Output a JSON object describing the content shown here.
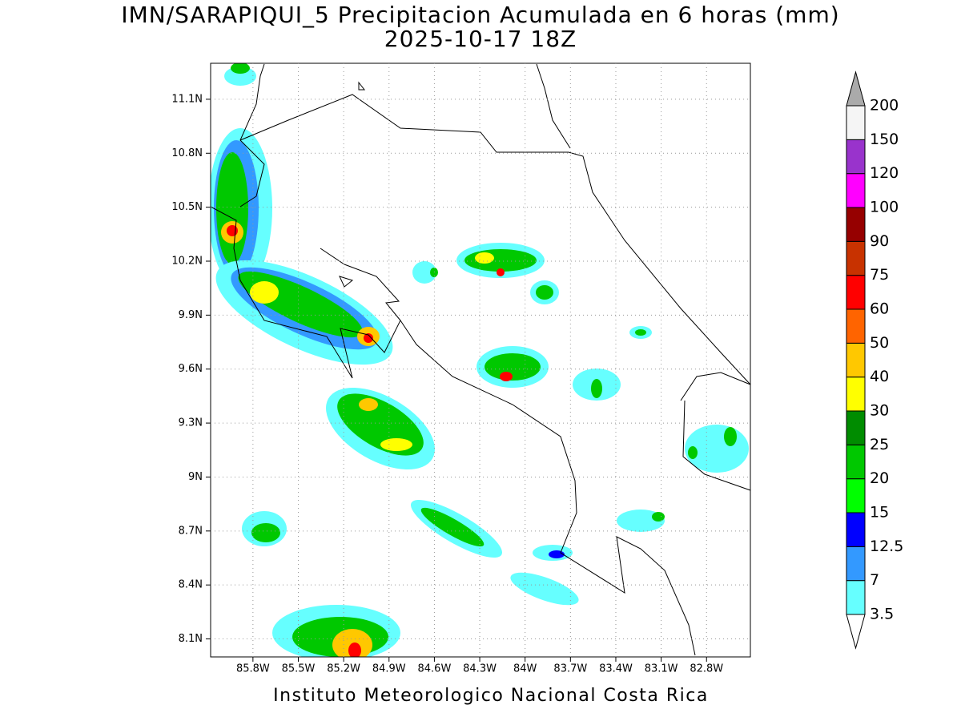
{
  "chart_data": {
    "type": "contour_map",
    "title": "IMN/SARAPIQUI_5 Precipitacion Acumulada en 6 horas (mm)",
    "subtitle": "2025-10-17 18Z",
    "footer": "Instituto Meteorologico Nacional Costa Rica",
    "xlim": [
      -86.08,
      -82.51
    ],
    "ylim": [
      8.0,
      11.3
    ],
    "xticks": [
      {
        "value": -85.8,
        "label": "85.8W"
      },
      {
        "value": -85.5,
        "label": "85.5W"
      },
      {
        "value": -85.2,
        "label": "85.2W"
      },
      {
        "value": -84.9,
        "label": "84.9W"
      },
      {
        "value": -84.6,
        "label": "84.6W"
      },
      {
        "value": -84.3,
        "label": "84.3W"
      },
      {
        "value": -84,
        "label": "84W"
      },
      {
        "value": -83.7,
        "label": "83.7W"
      },
      {
        "value": -83.4,
        "label": "83.4W"
      },
      {
        "value": -83.1,
        "label": "83.1W"
      },
      {
        "value": -82.8,
        "label": "82.8W"
      }
    ],
    "yticks": [
      {
        "value": 8.1,
        "label": "8.1N"
      },
      {
        "value": 8.4,
        "label": "8.4N"
      },
      {
        "value": 8.7,
        "label": "8.7N"
      },
      {
        "value": 9,
        "label": "9N"
      },
      {
        "value": 9.3,
        "label": "9.3N"
      },
      {
        "value": 9.6,
        "label": "9.6N"
      },
      {
        "value": 9.9,
        "label": "9.9N"
      },
      {
        "value": 10.2,
        "label": "10.2N"
      },
      {
        "value": 10.5,
        "label": "10.5N"
      },
      {
        "value": 10.8,
        "label": "10.8N"
      },
      {
        "value": 11.1,
        "label": "11.1N"
      }
    ],
    "grid": true,
    "colorbar": {
      "levels": [
        3.5,
        7,
        12.5,
        15,
        20,
        25,
        30,
        40,
        50,
        60,
        75,
        90,
        100,
        120,
        150,
        200
      ],
      "colors": [
        "#66ffff",
        "#3399ff",
        "#0000ff",
        "#00ff00",
        "#00c800",
        "#008c00",
        "#ffff00",
        "#ffc800",
        "#ff6400",
        "#ff0000",
        "#c83200",
        "#960000",
        "#ff00ff",
        "#9933cc",
        "#f5f5f5"
      ],
      "under_color": "#ffffff",
      "over_color": "#aaaaaa"
    }
  }
}
